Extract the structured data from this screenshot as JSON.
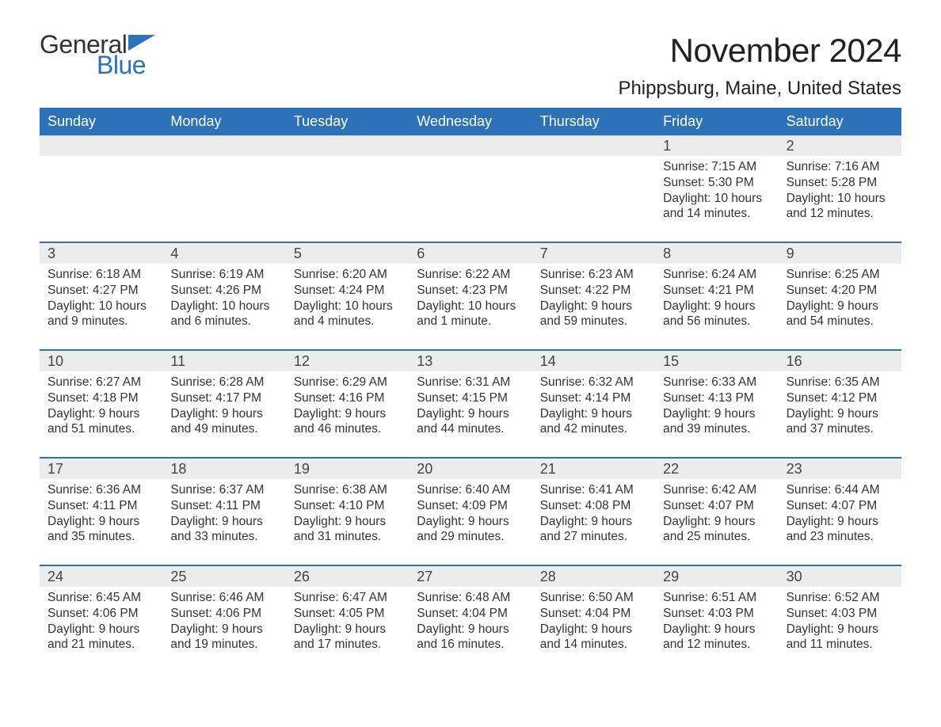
{
  "logo": {
    "word1": "General",
    "word2": "Blue",
    "flag_color": "#2b72b9"
  },
  "title": "November 2024",
  "location": "Phippsburg, Maine, United States",
  "colors": {
    "header_bg": "#2b72b9",
    "header_text": "#ffffff",
    "daynum_bg": "#ececec",
    "text": "#333333",
    "border": "#2b72b9",
    "page_bg": "#ffffff"
  },
  "layout": {
    "columns": 7,
    "weeks": 5,
    "start_day_index": 5
  },
  "weekdays": [
    "Sunday",
    "Monday",
    "Tuesday",
    "Wednesday",
    "Thursday",
    "Friday",
    "Saturday"
  ],
  "labels": {
    "sunrise": "Sunrise:",
    "sunset": "Sunset:",
    "daylight": "Daylight:"
  },
  "days": [
    {
      "n": 1,
      "sunrise": "7:15 AM",
      "sunset": "5:30 PM",
      "daylight": "10 hours and 14 minutes."
    },
    {
      "n": 2,
      "sunrise": "7:16 AM",
      "sunset": "5:28 PM",
      "daylight": "10 hours and 12 minutes."
    },
    {
      "n": 3,
      "sunrise": "6:18 AM",
      "sunset": "4:27 PM",
      "daylight": "10 hours and 9 minutes."
    },
    {
      "n": 4,
      "sunrise": "6:19 AM",
      "sunset": "4:26 PM",
      "daylight": "10 hours and 6 minutes."
    },
    {
      "n": 5,
      "sunrise": "6:20 AM",
      "sunset": "4:24 PM",
      "daylight": "10 hours and 4 minutes."
    },
    {
      "n": 6,
      "sunrise": "6:22 AM",
      "sunset": "4:23 PM",
      "daylight": "10 hours and 1 minute."
    },
    {
      "n": 7,
      "sunrise": "6:23 AM",
      "sunset": "4:22 PM",
      "daylight": "9 hours and 59 minutes."
    },
    {
      "n": 8,
      "sunrise": "6:24 AM",
      "sunset": "4:21 PM",
      "daylight": "9 hours and 56 minutes."
    },
    {
      "n": 9,
      "sunrise": "6:25 AM",
      "sunset": "4:20 PM",
      "daylight": "9 hours and 54 minutes."
    },
    {
      "n": 10,
      "sunrise": "6:27 AM",
      "sunset": "4:18 PM",
      "daylight": "9 hours and 51 minutes."
    },
    {
      "n": 11,
      "sunrise": "6:28 AM",
      "sunset": "4:17 PM",
      "daylight": "9 hours and 49 minutes."
    },
    {
      "n": 12,
      "sunrise": "6:29 AM",
      "sunset": "4:16 PM",
      "daylight": "9 hours and 46 minutes."
    },
    {
      "n": 13,
      "sunrise": "6:31 AM",
      "sunset": "4:15 PM",
      "daylight": "9 hours and 44 minutes."
    },
    {
      "n": 14,
      "sunrise": "6:32 AM",
      "sunset": "4:14 PM",
      "daylight": "9 hours and 42 minutes."
    },
    {
      "n": 15,
      "sunrise": "6:33 AM",
      "sunset": "4:13 PM",
      "daylight": "9 hours and 39 minutes."
    },
    {
      "n": 16,
      "sunrise": "6:35 AM",
      "sunset": "4:12 PM",
      "daylight": "9 hours and 37 minutes."
    },
    {
      "n": 17,
      "sunrise": "6:36 AM",
      "sunset": "4:11 PM",
      "daylight": "9 hours and 35 minutes."
    },
    {
      "n": 18,
      "sunrise": "6:37 AM",
      "sunset": "4:11 PM",
      "daylight": "9 hours and 33 minutes."
    },
    {
      "n": 19,
      "sunrise": "6:38 AM",
      "sunset": "4:10 PM",
      "daylight": "9 hours and 31 minutes."
    },
    {
      "n": 20,
      "sunrise": "6:40 AM",
      "sunset": "4:09 PM",
      "daylight": "9 hours and 29 minutes."
    },
    {
      "n": 21,
      "sunrise": "6:41 AM",
      "sunset": "4:08 PM",
      "daylight": "9 hours and 27 minutes."
    },
    {
      "n": 22,
      "sunrise": "6:42 AM",
      "sunset": "4:07 PM",
      "daylight": "9 hours and 25 minutes."
    },
    {
      "n": 23,
      "sunrise": "6:44 AM",
      "sunset": "4:07 PM",
      "daylight": "9 hours and 23 minutes."
    },
    {
      "n": 24,
      "sunrise": "6:45 AM",
      "sunset": "4:06 PM",
      "daylight": "9 hours and 21 minutes."
    },
    {
      "n": 25,
      "sunrise": "6:46 AM",
      "sunset": "4:06 PM",
      "daylight": "9 hours and 19 minutes."
    },
    {
      "n": 26,
      "sunrise": "6:47 AM",
      "sunset": "4:05 PM",
      "daylight": "9 hours and 17 minutes."
    },
    {
      "n": 27,
      "sunrise": "6:48 AM",
      "sunset": "4:04 PM",
      "daylight": "9 hours and 16 minutes."
    },
    {
      "n": 28,
      "sunrise": "6:50 AM",
      "sunset": "4:04 PM",
      "daylight": "9 hours and 14 minutes."
    },
    {
      "n": 29,
      "sunrise": "6:51 AM",
      "sunset": "4:03 PM",
      "daylight": "9 hours and 12 minutes."
    },
    {
      "n": 30,
      "sunrise": "6:52 AM",
      "sunset": "4:03 PM",
      "daylight": "9 hours and 11 minutes."
    }
  ]
}
